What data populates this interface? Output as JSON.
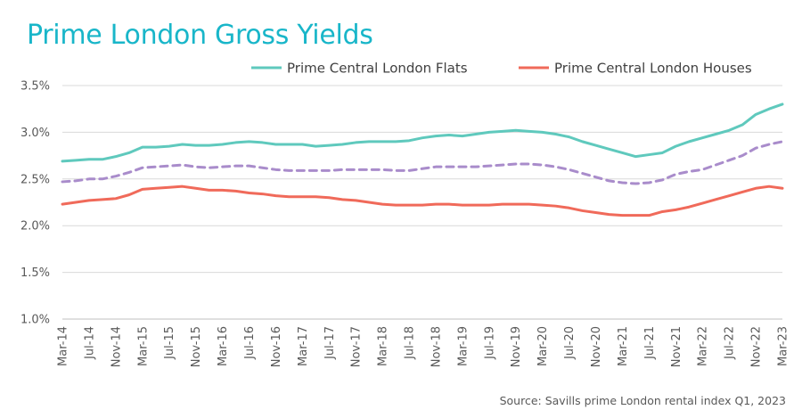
{
  "chart_data": {
    "type": "line",
    "title": "Prime London Gross Yields",
    "source": "Source: Savills prime London rental index Q1, 2023",
    "x": [
      "Mar-14",
      "May-14",
      "Jul-14",
      "Sep-14",
      "Nov-14",
      "Jan-15",
      "Mar-15",
      "May-15",
      "Jul-15",
      "Sep-15",
      "Nov-15",
      "Jan-16",
      "Mar-16",
      "May-16",
      "Jul-16",
      "Sep-16",
      "Nov-16",
      "Jan-17",
      "Mar-17",
      "May-17",
      "Jul-17",
      "Sep-17",
      "Nov-17",
      "Jan-18",
      "Mar-18",
      "May-18",
      "Jul-18",
      "Sep-18",
      "Nov-18",
      "Jan-19",
      "Mar-19",
      "May-19",
      "Jul-19",
      "Sep-19",
      "Nov-19",
      "Jan-20",
      "Mar-20",
      "May-20",
      "Jul-20",
      "Sep-20",
      "Nov-20",
      "Jan-21",
      "Mar-21",
      "May-21",
      "Jul-21",
      "Sep-21",
      "Nov-21",
      "Jan-22",
      "Mar-22",
      "May-22",
      "Jul-22",
      "Sep-22",
      "Nov-22",
      "Jan-23",
      "Mar-23"
    ],
    "x_tick_labels": [
      "Mar-14",
      "Jul-14",
      "Nov-14",
      "Mar-15",
      "Jul-15",
      "Nov-15",
      "Mar-16",
      "Jul-16",
      "Nov-16",
      "Mar-17",
      "Jul-17",
      "Nov-17",
      "Mar-18",
      "Jul-18",
      "Nov-18",
      "Mar-19",
      "Jul-19",
      "Nov-19",
      "Mar-20",
      "Jul-20",
      "Nov-20",
      "Mar-21",
      "Jul-21",
      "Nov-21",
      "Mar-22",
      "Jul-22",
      "Nov-22",
      "Mar-23"
    ],
    "y_ticks": [
      "1.0%",
      "1.5%",
      "2.0%",
      "2.5%",
      "3.0%",
      "3.5%"
    ],
    "ylim": [
      1.0,
      3.5
    ],
    "grid": true,
    "legend_position": "top",
    "series": [
      {
        "name": "Prime Central London Flats",
        "color": "#5fc9bd",
        "style": "solid",
        "values": [
          2.69,
          2.7,
          2.71,
          2.71,
          2.74,
          2.78,
          2.84,
          2.84,
          2.85,
          2.87,
          2.86,
          2.86,
          2.87,
          2.89,
          2.9,
          2.89,
          2.87,
          2.87,
          2.87,
          2.85,
          2.86,
          2.87,
          2.89,
          2.9,
          2.9,
          2.9,
          2.91,
          2.94,
          2.96,
          2.97,
          2.96,
          2.98,
          3.0,
          3.01,
          3.02,
          3.01,
          3.0,
          2.98,
          2.95,
          2.9,
          2.86,
          2.82,
          2.78,
          2.74,
          2.76,
          2.78,
          2.85,
          2.9,
          2.94,
          2.98,
          3.02,
          3.08,
          3.19,
          3.25,
          3.3
        ]
      },
      {
        "name": "",
        "color": "#a98ccb",
        "style": "dashed",
        "values": [
          2.47,
          2.48,
          2.5,
          2.5,
          2.53,
          2.57,
          2.62,
          2.63,
          2.64,
          2.65,
          2.63,
          2.62,
          2.63,
          2.64,
          2.64,
          2.62,
          2.6,
          2.59,
          2.59,
          2.59,
          2.59,
          2.6,
          2.6,
          2.6,
          2.6,
          2.59,
          2.59,
          2.61,
          2.63,
          2.63,
          2.63,
          2.63,
          2.64,
          2.65,
          2.66,
          2.66,
          2.65,
          2.63,
          2.6,
          2.56,
          2.52,
          2.48,
          2.46,
          2.45,
          2.46,
          2.49,
          2.55,
          2.58,
          2.6,
          2.65,
          2.7,
          2.75,
          2.83,
          2.87,
          2.9
        ]
      },
      {
        "name": "Prime Central London Houses",
        "color": "#f06a5a",
        "style": "solid",
        "values": [
          2.23,
          2.25,
          2.27,
          2.28,
          2.29,
          2.33,
          2.39,
          2.4,
          2.41,
          2.42,
          2.4,
          2.38,
          2.38,
          2.37,
          2.35,
          2.34,
          2.32,
          2.31,
          2.31,
          2.31,
          2.3,
          2.28,
          2.27,
          2.25,
          2.23,
          2.22,
          2.22,
          2.22,
          2.23,
          2.23,
          2.22,
          2.22,
          2.22,
          2.23,
          2.23,
          2.23,
          2.22,
          2.21,
          2.19,
          2.16,
          2.14,
          2.12,
          2.11,
          2.11,
          2.11,
          2.15,
          2.17,
          2.2,
          2.24,
          2.28,
          2.32,
          2.36,
          2.4,
          2.42,
          2.4
        ]
      }
    ]
  }
}
